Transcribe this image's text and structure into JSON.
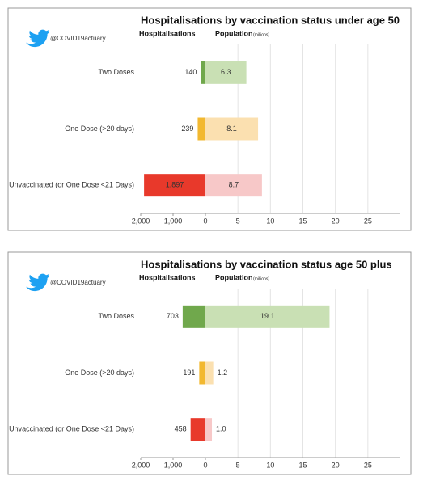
{
  "chart_data": [
    {
      "type": "bar",
      "title": "Hospitalisations by vaccination status under age 50",
      "handle": "@COVID19actuary",
      "unit": "(millions)",
      "categories": [
        "Two Doses",
        "One Dose (>20 days)",
        "Unvaccinated (or One Dose <21 Days)"
      ],
      "series": [
        {
          "name": "Hospitalisations",
          "colors": [
            "#70a84c",
            "#f2b830",
            "#e8392b"
          ],
          "values": [
            140,
            239,
            1897
          ],
          "value_labels": [
            "140",
            "239",
            "1,897"
          ]
        },
        {
          "name": "Population",
          "axis": "x2",
          "colors": [
            "#c9e0b4",
            "#fbe0b0",
            "#f7c8c8"
          ],
          "values": [
            6.3,
            8.1,
            8.7
          ],
          "value_labels": [
            "6.3",
            "8.1",
            "8.7"
          ]
        }
      ],
      "xlim": [
        0,
        2000
      ],
      "xticks": [
        {
          "value": 2000,
          "label": "2,000"
        },
        {
          "value": 1000,
          "label": "1,000"
        },
        0
      ],
      "x2lim": [
        0,
        30
      ],
      "x2ticks": [
        5,
        10,
        15,
        20,
        25
      ],
      "grid": true
    },
    {
      "type": "bar",
      "title": "Hospitalisations by vaccination status age 50 plus",
      "handle": "@COVID19actuary",
      "unit": "(millions)",
      "categories": [
        "Two Doses",
        "One Dose (>20 days)",
        "Unvaccinated (or One Dose <21 Days)"
      ],
      "series": [
        {
          "name": "Hospitalisations",
          "colors": [
            "#70a84c",
            "#f2b830",
            "#e8392b"
          ],
          "values": [
            703,
            191,
            458
          ],
          "value_labels": [
            "703",
            "191",
            "458"
          ]
        },
        {
          "name": "Population",
          "axis": "x2",
          "colors": [
            "#c9e0b4",
            "#fbe0b0",
            "#f7c8c8"
          ],
          "values": [
            19.1,
            1.2,
            1.0
          ],
          "value_labels": [
            "19.1",
            "1.2",
            "1.0"
          ]
        }
      ],
      "xlim": [
        0,
        2000
      ],
      "xticks": [
        {
          "value": 2000,
          "label": "2,000"
        },
        {
          "value": 1000,
          "label": "1,000"
        },
        0
      ],
      "x2lim": [
        0,
        30
      ],
      "x2ticks": [
        5,
        10,
        15,
        20,
        25
      ],
      "grid": true
    }
  ]
}
